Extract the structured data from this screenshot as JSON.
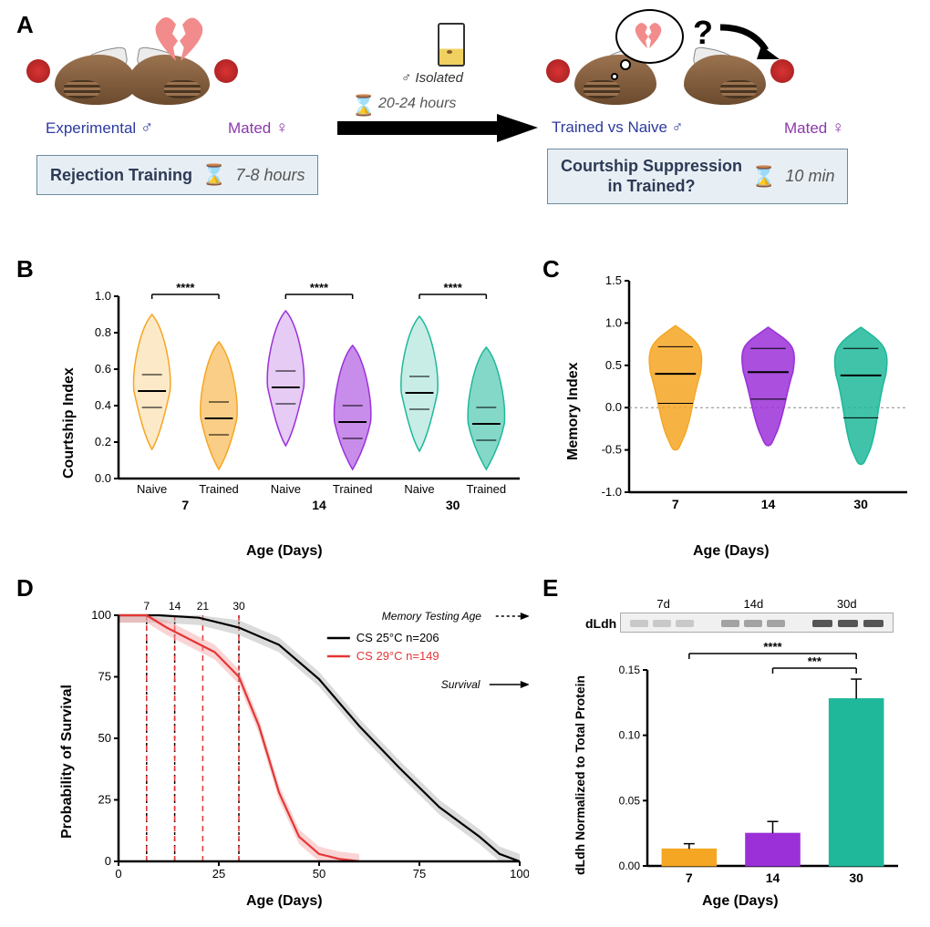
{
  "panel_labels": {
    "A": "A",
    "B": "B",
    "C": "C",
    "D": "D",
    "E": "E"
  },
  "colors": {
    "orange": "#f5a623",
    "orange_dark": "#d17a0e",
    "purple": "#9b30d8",
    "purple_dark": "#6a1e96",
    "teal": "#1fb89a",
    "teal_dark": "#138f77",
    "red": "#e53535",
    "black": "#000000",
    "gray": "#808080",
    "heart": "#f28b8b",
    "info_bg": "#e8eff4",
    "info_border": "#6b8a9e",
    "info_text": "#2d3a56"
  },
  "panelA": {
    "experimental_label": "Experimental",
    "mated_label": "Mated",
    "male_symbol": "♂",
    "female_symbol": "♀",
    "rejection_box": "Rejection Training",
    "rejection_time": "7-8 hours",
    "isolated_label": "♂ Isolated",
    "wait_time": "20-24 hours",
    "trained_vs_naive": "Trained vs Naive ♂",
    "question_box_l1": "Courtship Suppression",
    "question_box_l2": "in Trained?",
    "question_time": "10 min",
    "question_mark": "?",
    "experimental_color": "#2d3a9e",
    "mated_color": "#8a3aa8"
  },
  "panelB": {
    "ylabel": "Courtship Index",
    "xlabel": "Age  (Days)",
    "ylim": [
      0.0,
      1.0
    ],
    "yticks": [
      0.0,
      0.2,
      0.4,
      0.6,
      0.8,
      1.0
    ],
    "groups": [
      {
        "age": "7",
        "color": "#f5a623",
        "naive_median": 0.48,
        "trained_median": 0.33,
        "sig": "****"
      },
      {
        "age": "14",
        "color": "#9b30d8",
        "naive_median": 0.5,
        "trained_median": 0.31,
        "sig": "****"
      },
      {
        "age": "30",
        "color": "#1fb89a",
        "naive_median": 0.47,
        "trained_median": 0.3,
        "sig": "****"
      }
    ],
    "x_subcats": [
      "Naive",
      "Trained"
    ],
    "title_fontsize": 16,
    "label_fontsize": 15
  },
  "panelC": {
    "ylabel": "Memory Index",
    "xlabel": "Age  (Days)",
    "ylim": [
      -1.0,
      1.5
    ],
    "yticks": [
      -1.0,
      -0.5,
      0.0,
      0.5,
      1.0,
      1.5
    ],
    "groups": [
      {
        "age": "7",
        "color": "#f5a623",
        "median": 0.4,
        "q1": 0.05,
        "q3": 0.72
      },
      {
        "age": "14",
        "color": "#9b30d8",
        "median": 0.42,
        "q1": 0.1,
        "q3": 0.7
      },
      {
        "age": "30",
        "color": "#1fb89a",
        "median": 0.38,
        "q1": -0.12,
        "q3": 0.7
      }
    ],
    "label_fontsize": 15
  },
  "panelD": {
    "ylabel": "Probability of Survival",
    "xlabel": "Age  (Days)",
    "xlim": [
      0,
      100
    ],
    "ylim": [
      0,
      100
    ],
    "xticks": [
      0,
      25,
      50,
      75,
      100
    ],
    "yticks": [
      0,
      25,
      50,
      75,
      100
    ],
    "vlines_black": [
      7,
      14,
      30
    ],
    "vlines_red": [
      7,
      14,
      21,
      30
    ],
    "top_ticks": [
      "7",
      "14",
      "21",
      "30"
    ],
    "legend": [
      {
        "label": "CS 25°C n=206",
        "color": "#000000"
      },
      {
        "label": "CS 29°C n=149",
        "color": "#e53535"
      }
    ],
    "arrow_labels": {
      "memory_testing": "Memory Testing Age",
      "survival": "Survival"
    },
    "series": {
      "cs25": {
        "color": "#000000",
        "ci_color": "#b0b0b0",
        "points": [
          [
            0,
            100
          ],
          [
            10,
            100
          ],
          [
            20,
            99
          ],
          [
            30,
            95
          ],
          [
            40,
            88
          ],
          [
            50,
            74
          ],
          [
            60,
            55
          ],
          [
            70,
            38
          ],
          [
            80,
            22
          ],
          [
            90,
            10
          ],
          [
            95,
            3
          ],
          [
            100,
            0
          ]
        ]
      },
      "cs29": {
        "color": "#e53535",
        "ci_color": "#f5a0a0",
        "points": [
          [
            0,
            100
          ],
          [
            7,
            100
          ],
          [
            12,
            95
          ],
          [
            18,
            90
          ],
          [
            24,
            85
          ],
          [
            30,
            75
          ],
          [
            35,
            55
          ],
          [
            40,
            28
          ],
          [
            45,
            10
          ],
          [
            50,
            3
          ],
          [
            55,
            1
          ],
          [
            60,
            0
          ]
        ]
      }
    }
  },
  "panelE": {
    "ylabel": "dLdh Normalized to Total Protein",
    "xlabel": "Age (Days)",
    "ylim": [
      0.0,
      0.15
    ],
    "yticks": [
      0.0,
      0.05,
      0.1,
      0.15
    ],
    "band_labels": [
      "7d",
      "14d",
      "30d"
    ],
    "band_left_label": "dLdh",
    "bars": [
      {
        "age": "7",
        "value": 0.013,
        "err": 0.004,
        "color": "#f5a623"
      },
      {
        "age": "14",
        "value": 0.025,
        "err": 0.009,
        "color": "#9b30d8"
      },
      {
        "age": "30",
        "value": 0.128,
        "err": 0.015,
        "color": "#1fb89a"
      }
    ],
    "sigs": [
      {
        "from": 0,
        "to": 2,
        "label": "****",
        "y": 0.165
      },
      {
        "from": 1,
        "to": 2,
        "label": "***",
        "y": 0.15
      }
    ],
    "label_fontsize": 14
  }
}
